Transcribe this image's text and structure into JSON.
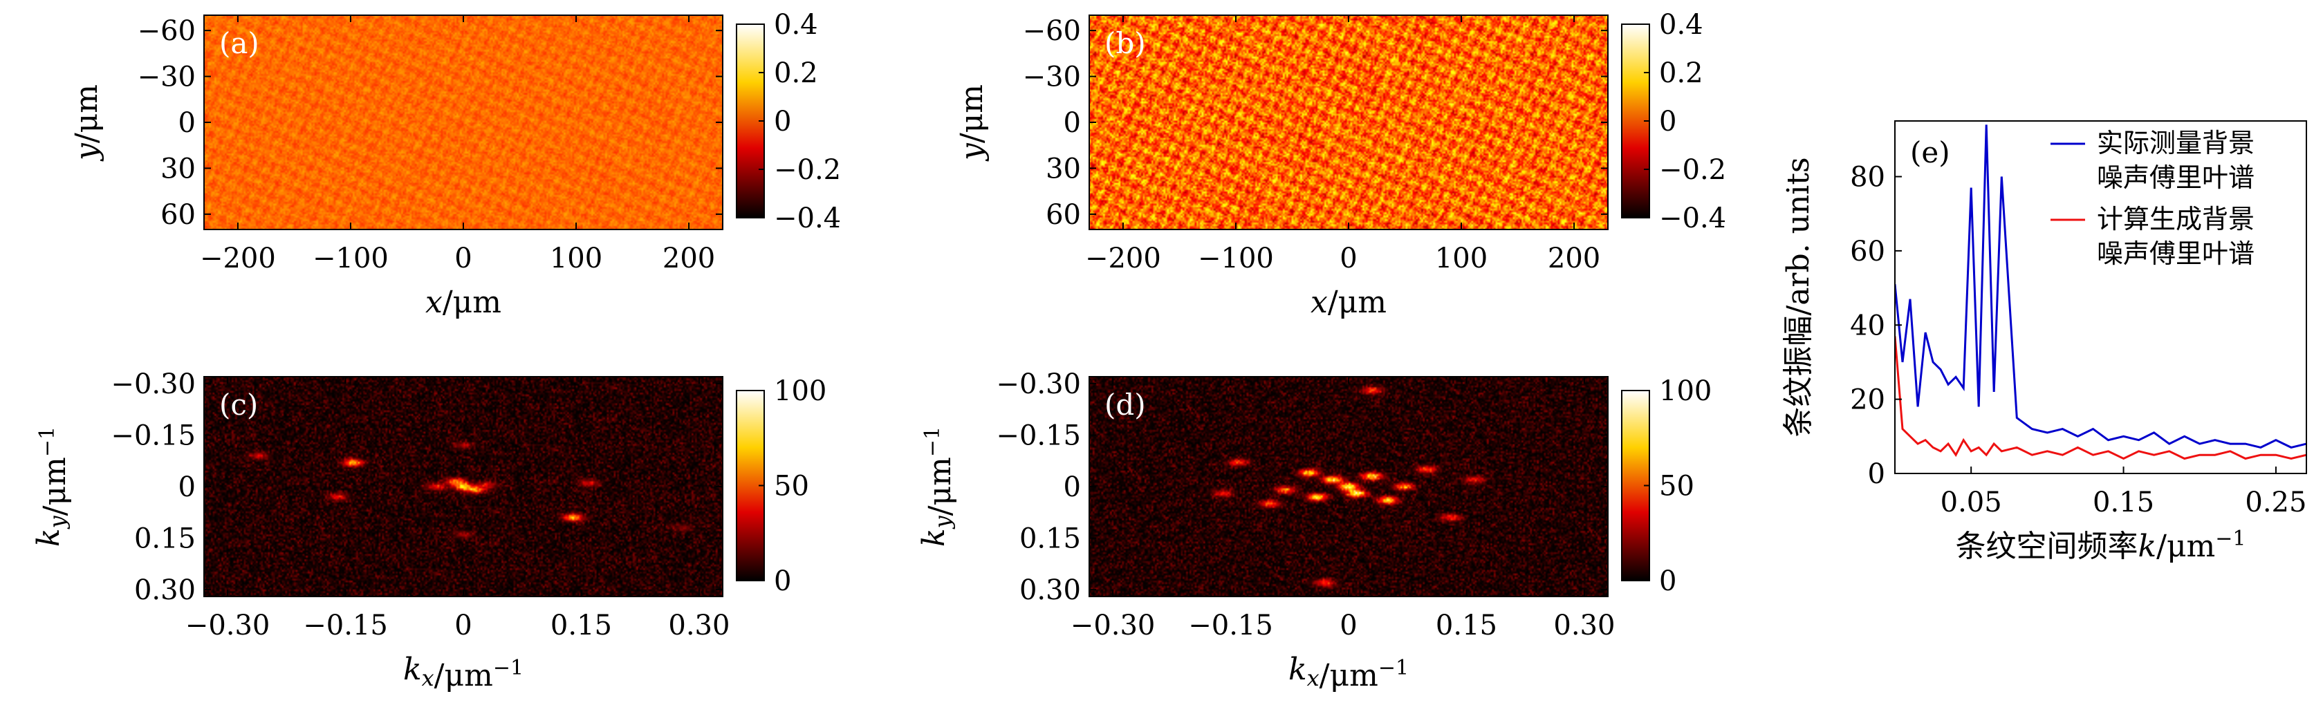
{
  "chart_data": [
    {
      "panel": "(a)",
      "type": "heatmap",
      "field": "fringe-noise-map",
      "xlabel": "x/μm",
      "ylabel": "y/μm",
      "xlim": [
        -230,
        230
      ],
      "ylim": [
        -70,
        70
      ],
      "xticks": [
        -200,
        -100,
        0,
        100,
        200
      ],
      "yticks": [
        -60,
        -30,
        0,
        30,
        60
      ],
      "xtick_labels": [
        "−200",
        "−100",
        "0",
        "100",
        "200"
      ],
      "ytick_labels": [
        "−60",
        "−30",
        "0",
        "30",
        "60"
      ],
      "y_inverted": true,
      "colormap": "hot",
      "colorbar": {
        "range": [
          -0.4,
          0.4
        ],
        "ticks": [
          0.4,
          0.2,
          0,
          -0.2,
          -0.4
        ],
        "tick_labels": [
          "0.4",
          "0.2",
          "0",
          "−0.2",
          "−0.4"
        ]
      },
      "noise_amplitude": 0.05
    },
    {
      "panel": "(b)",
      "type": "heatmap",
      "field": "fringe-noise-map",
      "xlabel": "x/μm",
      "ylabel": "y/μm",
      "xlim": [
        -230,
        230
      ],
      "ylim": [
        -70,
        70
      ],
      "xticks": [
        -200,
        -100,
        0,
        100,
        200
      ],
      "yticks": [
        -60,
        -30,
        0,
        30,
        60
      ],
      "xtick_labels": [
        "−200",
        "−100",
        "0",
        "100",
        "200"
      ],
      "ytick_labels": [
        "−60",
        "−30",
        "0",
        "30",
        "60"
      ],
      "y_inverted": true,
      "colormap": "hot",
      "colorbar": {
        "range": [
          -0.4,
          0.4
        ],
        "ticks": [
          0.4,
          0.2,
          0,
          -0.2,
          -0.4
        ],
        "tick_labels": [
          "0.4",
          "0.2",
          "0",
          "−0.2",
          "−0.4"
        ]
      },
      "noise_amplitude": 0.16
    },
    {
      "panel": "(c)",
      "type": "heatmap",
      "field": "fourier-spectrum",
      "xlabel": "k_x/μm⁻¹",
      "ylabel": "k_y/μm⁻¹",
      "xlim": [
        -0.33,
        0.33
      ],
      "ylim": [
        -0.32,
        0.32
      ],
      "xticks": [
        -0.3,
        -0.15,
        0,
        0.15,
        0.3
      ],
      "yticks": [
        -0.3,
        -0.15,
        0,
        0.15,
        0.3
      ],
      "xtick_labels": [
        "−0.30",
        "−0.15",
        "0",
        "0.15",
        "0.30"
      ],
      "ytick_labels": [
        "−0.30",
        "−0.15",
        "0",
        "0.15",
        "0.30"
      ],
      "y_inverted": true,
      "colormap": "hot",
      "colorbar": {
        "range": [
          0,
          100
        ],
        "ticks": [
          100,
          50,
          0
        ],
        "tick_labels": [
          "100",
          "50",
          "0"
        ]
      },
      "peaks": [
        {
          "kx": 0.0,
          "ky": 0.0,
          "value": 70
        },
        {
          "kx": -0.01,
          "ky": -0.015,
          "value": 60
        },
        {
          "kx": 0.015,
          "ky": 0.01,
          "value": 55
        },
        {
          "kx": -0.035,
          "ky": 0.0,
          "value": 40
        },
        {
          "kx": 0.03,
          "ky": -0.005,
          "value": 35
        },
        {
          "kx": -0.14,
          "ky": -0.07,
          "value": 75
        },
        {
          "kx": 0.14,
          "ky": 0.09,
          "value": 75
        },
        {
          "kx": -0.16,
          "ky": 0.03,
          "value": 35
        },
        {
          "kx": 0.16,
          "ky": -0.01,
          "value": 35
        },
        {
          "kx": -0.26,
          "ky": -0.09,
          "value": 30
        },
        {
          "kx": 0.28,
          "ky": 0.12,
          "value": 20
        },
        {
          "kx": 0.0,
          "ky": -0.12,
          "value": 25
        },
        {
          "kx": 0.0,
          "ky": 0.14,
          "value": 25
        }
      ]
    },
    {
      "panel": "(d)",
      "type": "heatmap",
      "field": "fourier-spectrum",
      "xlabel": "k_x/μm⁻¹",
      "ylabel": "k_y/μm⁻¹",
      "xlim": [
        -0.33,
        0.33
      ],
      "ylim": [
        -0.32,
        0.32
      ],
      "xticks": [
        -0.3,
        -0.15,
        0,
        0.15,
        0.3
      ],
      "yticks": [
        -0.3,
        -0.15,
        0,
        0.15,
        0.3
      ],
      "xtick_labels": [
        "−0.30",
        "−0.15",
        "0",
        "0.15",
        "0.30"
      ],
      "ytick_labels": [
        "−0.30",
        "−0.15",
        "0",
        "0.15",
        "0.30"
      ],
      "y_inverted": true,
      "colormap": "hot",
      "colorbar": {
        "range": [
          0,
          100
        ],
        "ticks": [
          100,
          50,
          0
        ],
        "tick_labels": [
          "100",
          "50",
          "0"
        ]
      },
      "peaks": [
        {
          "kx": 0.0,
          "ky": 0.0,
          "value": 100
        },
        {
          "kx": 0.01,
          "ky": 0.02,
          "value": 95
        },
        {
          "kx": -0.02,
          "ky": -0.02,
          "value": 90
        },
        {
          "kx": 0.03,
          "ky": -0.03,
          "value": 85
        },
        {
          "kx": -0.04,
          "ky": 0.03,
          "value": 85
        },
        {
          "kx": 0.05,
          "ky": 0.04,
          "value": 80
        },
        {
          "kx": -0.05,
          "ky": -0.04,
          "value": 80
        },
        {
          "kx": 0.07,
          "ky": 0.0,
          "value": 65
        },
        {
          "kx": -0.08,
          "ky": 0.01,
          "value": 60
        },
        {
          "kx": 0.1,
          "ky": -0.05,
          "value": 55
        },
        {
          "kx": -0.1,
          "ky": 0.05,
          "value": 55
        },
        {
          "kx": 0.13,
          "ky": 0.09,
          "value": 45
        },
        {
          "kx": -0.14,
          "ky": -0.07,
          "value": 45
        },
        {
          "kx": 0.03,
          "ky": -0.28,
          "value": 50
        },
        {
          "kx": -0.03,
          "ky": 0.28,
          "value": 50
        },
        {
          "kx": 0.16,
          "ky": -0.02,
          "value": 40
        },
        {
          "kx": -0.16,
          "ky": 0.02,
          "value": 40
        }
      ]
    },
    {
      "panel": "(e)",
      "type": "line",
      "xlabel": "条纹空间频率k/μm⁻¹",
      "ylabel": "条纹振幅/arb. units",
      "xlim": [
        0.0,
        0.27
      ],
      "ylim": [
        0,
        95
      ],
      "xticks": [
        0.05,
        0.15,
        0.25
      ],
      "yticks": [
        0,
        20,
        40,
        60,
        80
      ],
      "xtick_labels": [
        "0.05",
        "0.15",
        "0.25"
      ],
      "ytick_labels": [
        "0",
        "20",
        "40",
        "60",
        "80"
      ],
      "legend": "top-right",
      "series": [
        {
          "name": "实际测量背景噪声傅里叶谱",
          "legend_lines": [
            "实际测量背景",
            "噪声傅里叶谱"
          ],
          "color": "#0000cc",
          "x": [
            0.0,
            0.005,
            0.01,
            0.015,
            0.02,
            0.025,
            0.03,
            0.035,
            0.04,
            0.045,
            0.05,
            0.055,
            0.06,
            0.065,
            0.07,
            0.08,
            0.09,
            0.1,
            0.11,
            0.12,
            0.13,
            0.14,
            0.15,
            0.16,
            0.17,
            0.18,
            0.19,
            0.2,
            0.21,
            0.22,
            0.23,
            0.24,
            0.25,
            0.26,
            0.27
          ],
          "y": [
            51,
            30,
            47,
            18,
            38,
            30,
            28,
            24,
            26,
            23,
            77,
            18,
            94,
            22,
            80,
            15,
            12,
            11,
            12,
            10,
            12,
            9,
            10,
            9,
            11,
            8,
            10,
            8,
            9,
            8,
            8,
            7,
            9,
            7,
            8
          ]
        },
        {
          "name": "计算生成背景噪声傅里叶谱",
          "legend_lines": [
            "计算生成背景",
            "噪声傅里叶谱"
          ],
          "color": "#ee1111",
          "x": [
            0.0,
            0.005,
            0.01,
            0.015,
            0.02,
            0.025,
            0.03,
            0.035,
            0.04,
            0.045,
            0.05,
            0.055,
            0.06,
            0.065,
            0.07,
            0.08,
            0.09,
            0.1,
            0.11,
            0.12,
            0.13,
            0.14,
            0.15,
            0.16,
            0.17,
            0.18,
            0.19,
            0.2,
            0.21,
            0.22,
            0.23,
            0.24,
            0.25,
            0.26,
            0.27
          ],
          "y": [
            37,
            12,
            10,
            8,
            9,
            7,
            6,
            8,
            5,
            9,
            6,
            7,
            5,
            8,
            6,
            7,
            5,
            6,
            5,
            7,
            5,
            6,
            4,
            6,
            5,
            6,
            4,
            5,
            5,
            6,
            4,
            5,
            5,
            4,
            5
          ]
        }
      ]
    }
  ]
}
